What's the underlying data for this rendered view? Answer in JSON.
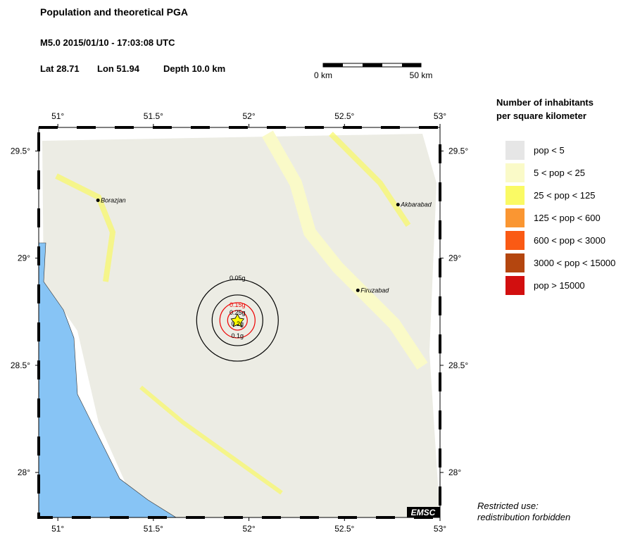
{
  "header": {
    "title": "Population and theoretical PGA",
    "event": "M5.0  2015/01/10 - 17:03:08 UTC",
    "lat": "Lat 28.71",
    "lon": "Lon  51.94",
    "depth": "Depth  10.0 km"
  },
  "scale_bar": {
    "start": "0 km",
    "end": "50 km"
  },
  "map": {
    "lonlim": [
      50.9,
      53.0
    ],
    "latlim": [
      27.79,
      29.61
    ],
    "lon_ticks": [
      {
        "value": 51,
        "label": "51°"
      },
      {
        "value": 51.5,
        "label": "51.5°"
      },
      {
        "value": 52,
        "label": "52°"
      },
      {
        "value": 52.5,
        "label": "52.5°"
      },
      {
        "value": 53,
        "label": "53°"
      }
    ],
    "lat_ticks": [
      {
        "value": 29.5,
        "label": "29.5°"
      },
      {
        "value": 29,
        "label": "29°"
      },
      {
        "value": 28.5,
        "label": "28.5°"
      },
      {
        "value": 28,
        "label": "28°"
      }
    ],
    "cities": [
      {
        "name": "Borazjan",
        "lon": 51.21,
        "lat": 29.27
      },
      {
        "name": "Akbarabad",
        "lon": 52.78,
        "lat": 29.25
      },
      {
        "name": "Firuzabad",
        "lon": 52.57,
        "lat": 28.85
      }
    ],
    "epicenter": {
      "lon": 51.94,
      "lat": 28.71
    },
    "pga_labels": [
      "0.05g",
      "0.15g",
      "0.25g",
      "0.2g",
      "0.1g"
    ],
    "logo": "EMSC"
  },
  "legend": {
    "title_1": "Number of inhabitants",
    "title_2": "per square kilometer",
    "items": [
      {
        "label": "pop < 5",
        "color": "#e6e6e6"
      },
      {
        "label": "5 < pop < 25",
        "color": "#fafac8"
      },
      {
        "label": "25 < pop < 125",
        "color": "#fafa64"
      },
      {
        "label": "125 < pop < 600",
        "color": "#fa9632"
      },
      {
        "label": "600 < pop < 3000",
        "color": "#fa5a14"
      },
      {
        "label": "3000 < pop < 15000",
        "color": "#b4460f"
      },
      {
        "label": "pop > 15000",
        "color": "#d20f0f"
      }
    ]
  },
  "footer": {
    "line_1": "Restricted use:",
    "line_2": "redistribution forbidden"
  }
}
